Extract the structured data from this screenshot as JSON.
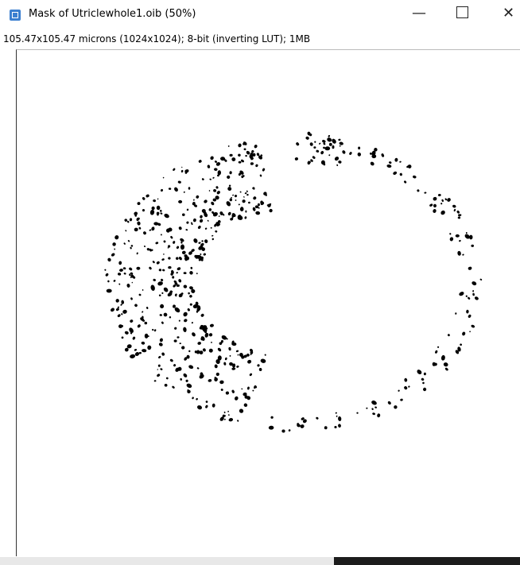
{
  "window": {
    "title": "Mask of Utriclewhole1.oib (50%)",
    "info": "105.47x105.47 microns (1024x1024); 8-bit (inverting LUT); 1MB"
  }
}
